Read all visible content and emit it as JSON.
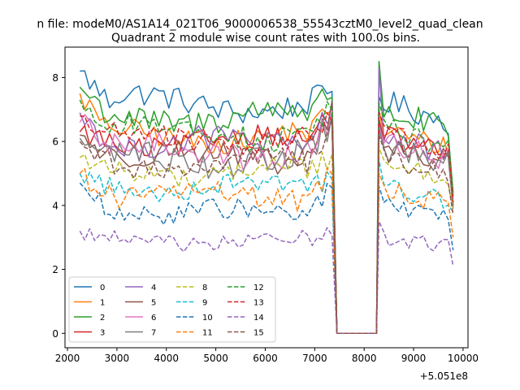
{
  "chart_data": {
    "type": "line",
    "suptitle": "n file: modeM0/AS1A14_021T06_9000006538_55543cztM0_level2_quad_clean",
    "title": "Quadrant 2 module wise count rates with 100.0s bins.",
    "xlabel": "",
    "ylabel": "",
    "x_offset_label": "+5.051e8",
    "xlim": [
      1950,
      10100
    ],
    "ylim": [
      -0.45,
      8.95
    ],
    "xticks": [
      2000,
      3000,
      4000,
      5000,
      6000,
      7000,
      8000,
      9000,
      10000
    ],
    "xtick_labels": [
      "2000",
      "3000",
      "4000",
      "5000",
      "6000",
      "7000",
      "8000",
      "9000",
      "10000"
    ],
    "yticks": [
      0,
      2,
      4,
      6,
      8
    ],
    "ytick_labels": [
      "0",
      "2",
      "4",
      "6",
      "8"
    ],
    "grid": false,
    "legend": {
      "placement": "lower-left",
      "ncol": 4
    },
    "segment1": {
      "start": 2250,
      "end": 7350,
      "step": 100
    },
    "gap": [
      7450,
      8250
    ],
    "segment2": {
      "start": 8300,
      "end": 9750,
      "step": 100
    },
    "series": [
      {
        "name": "0",
        "color": "#1f77b4",
        "style": "solid",
        "level1": 7.2,
        "level2": 7.3,
        "start": 8.2,
        "jump": 7.6,
        "first2": 7.4,
        "last": 4.3,
        "noise": 0.25
      },
      {
        "name": "1",
        "color": "#ff7f0e",
        "style": "solid",
        "level1": 6.2,
        "level2": 6.4,
        "start": 7.5,
        "jump": 7.1,
        "first2": 7.0,
        "last": 4.2,
        "noise": 0.22
      },
      {
        "name": "2",
        "color": "#2ca02c",
        "style": "solid",
        "level1": 6.8,
        "level2": 7.0,
        "start": 7.7,
        "jump": 7.6,
        "first2": 8.5,
        "last": 4.4,
        "noise": 0.28
      },
      {
        "name": "3",
        "color": "#d62728",
        "style": "solid",
        "level1": 6.0,
        "level2": 6.2,
        "start": 6.3,
        "jump": 6.9,
        "first2": 6.7,
        "last": 4.0,
        "noise": 0.22
      },
      {
        "name": "4",
        "color": "#9467bd",
        "style": "solid",
        "level1": 5.9,
        "level2": 6.2,
        "start": 6.9,
        "jump": 7.0,
        "first2": 8.3,
        "last": 4.0,
        "noise": 0.25
      },
      {
        "name": "5",
        "color": "#8c564b",
        "style": "solid",
        "level1": 5.5,
        "level2": 5.9,
        "start": 6.2,
        "jump": 6.9,
        "first2": 6.6,
        "last": 3.9,
        "noise": 0.25
      },
      {
        "name": "6",
        "color": "#e377c2",
        "style": "solid",
        "level1": 5.7,
        "level2": 6.0,
        "start": 6.6,
        "jump": 6.7,
        "first2": 6.5,
        "last": 4.0,
        "noise": 0.25
      },
      {
        "name": "7",
        "color": "#7f7f7f",
        "style": "solid",
        "level1": 5.5,
        "level2": 5.8,
        "start": 6.1,
        "jump": 6.6,
        "first2": 6.4,
        "last": 3.9,
        "noise": 0.28
      },
      {
        "name": "8",
        "color": "#bcbd22",
        "style": "dashed",
        "level1": 5.1,
        "level2": 5.4,
        "start": 5.5,
        "jump": 5.5,
        "first2": 5.8,
        "last": 3.9,
        "noise": 0.2
      },
      {
        "name": "9",
        "color": "#17becf",
        "style": "dashed",
        "level1": 4.6,
        "level2": 4.6,
        "start": 5.0,
        "jump": 4.8,
        "first2": 5.4,
        "last": 3.8,
        "noise": 0.2
      },
      {
        "name": "10",
        "color": "#1f77b4",
        "style": "dashed",
        "level1": 3.75,
        "level2": 4.0,
        "start": 4.7,
        "jump": 4.6,
        "first2": 4.6,
        "last": 2.6,
        "noise": 0.2
      },
      {
        "name": "11",
        "color": "#ff7f0e",
        "style": "dashed",
        "level1": 4.3,
        "level2": 4.5,
        "start": 5.0,
        "jump": 5.1,
        "first2": 5.0,
        "last": 3.0,
        "noise": 0.22
      },
      {
        "name": "12",
        "color": "#2ca02c",
        "style": "dashed",
        "level1": 6.3,
        "level2": 6.5,
        "start": 7.3,
        "jump": 7.2,
        "first2": 7.2,
        "last": 4.3,
        "noise": 0.25
      },
      {
        "name": "13",
        "color": "#d62728",
        "style": "dashed",
        "level1": 6.1,
        "level2": 6.3,
        "start": 6.8,
        "jump": 6.9,
        "first2": 6.9,
        "last": 4.1,
        "noise": 0.22
      },
      {
        "name": "14",
        "color": "#9467bd",
        "style": "dashed",
        "level1": 2.9,
        "level2": 3.0,
        "start": 3.2,
        "jump": 3.3,
        "first2": 3.5,
        "last": 2.1,
        "noise": 0.15
      },
      {
        "name": "15",
        "color": "#8c564b",
        "style": "dashed",
        "level1": 5.3,
        "level2": 5.5,
        "start": 6.0,
        "jump": 6.4,
        "first2": 6.2,
        "last": 3.7,
        "noise": 0.2
      }
    ]
  }
}
